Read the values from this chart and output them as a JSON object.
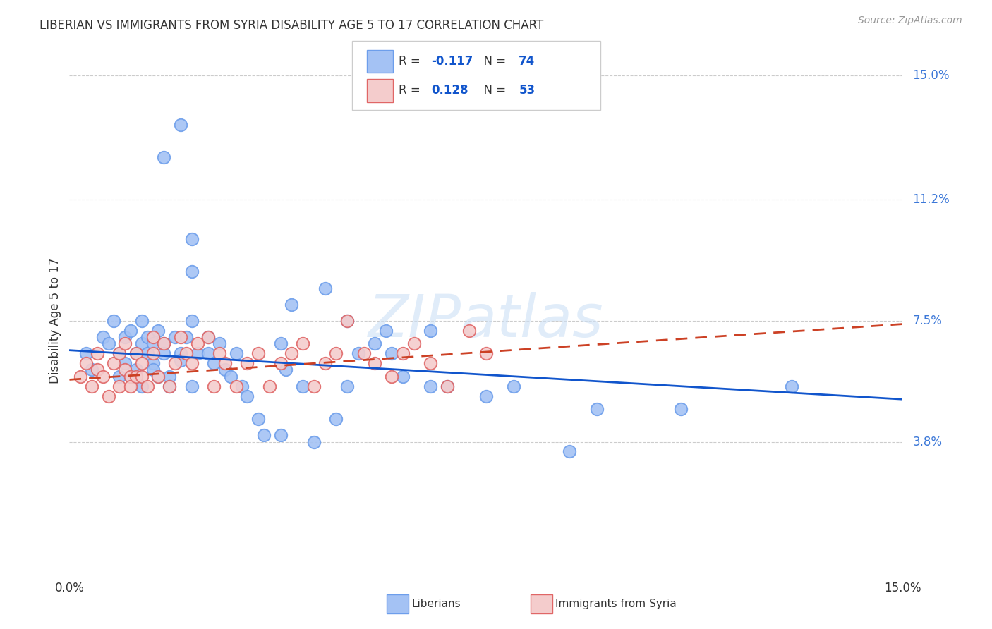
{
  "title": "LIBERIAN VS IMMIGRANTS FROM SYRIA DISABILITY AGE 5 TO 17 CORRELATION CHART",
  "source": "Source: ZipAtlas.com",
  "ylabel": "Disability Age 5 to 17",
  "xmin": 0.0,
  "xmax": 0.15,
  "ymin": 0.0,
  "ymax": 0.15,
  "yticks": [
    0.0,
    0.038,
    0.075,
    0.112,
    0.15
  ],
  "ytick_labels": [
    "",
    "3.8%",
    "7.5%",
    "11.2%",
    "15.0%"
  ],
  "watermark": "ZIPatlas",
  "liberian_color": "#a4c2f4",
  "syria_color": "#f4cccc",
  "liberian_edge_color": "#6d9eeb",
  "syria_edge_color": "#e06666",
  "liberian_line_color": "#1155cc",
  "syria_line_color": "#cc4125",
  "lib_trend_start_y": 0.066,
  "lib_trend_end_y": 0.051,
  "syr_trend_start_y": 0.057,
  "syr_trend_end_y": 0.074,
  "liberian_x": [
    0.003,
    0.004,
    0.006,
    0.007,
    0.008,
    0.009,
    0.009,
    0.01,
    0.01,
    0.011,
    0.011,
    0.012,
    0.012,
    0.013,
    0.013,
    0.013,
    0.014,
    0.014,
    0.015,
    0.015,
    0.015,
    0.016,
    0.016,
    0.017,
    0.017,
    0.018,
    0.018,
    0.019,
    0.02,
    0.02,
    0.021,
    0.022,
    0.022,
    0.023,
    0.025,
    0.025,
    0.026,
    0.027,
    0.028,
    0.029,
    0.03,
    0.031,
    0.032,
    0.034,
    0.035,
    0.038,
    0.039,
    0.042,
    0.044,
    0.048,
    0.05,
    0.055,
    0.058,
    0.065,
    0.068,
    0.075,
    0.08,
    0.09,
    0.095,
    0.11,
    0.13,
    0.017,
    0.02,
    0.022,
    0.022,
    0.038,
    0.04,
    0.046,
    0.05,
    0.052,
    0.057,
    0.06,
    0.065
  ],
  "liberian_y": [
    0.065,
    0.06,
    0.07,
    0.068,
    0.075,
    0.065,
    0.058,
    0.07,
    0.062,
    0.072,
    0.058,
    0.065,
    0.06,
    0.075,
    0.068,
    0.055,
    0.07,
    0.065,
    0.068,
    0.062,
    0.06,
    0.072,
    0.058,
    0.068,
    0.065,
    0.058,
    0.055,
    0.07,
    0.065,
    0.063,
    0.07,
    0.075,
    0.055,
    0.065,
    0.07,
    0.065,
    0.062,
    0.068,
    0.06,
    0.058,
    0.065,
    0.055,
    0.052,
    0.045,
    0.04,
    0.04,
    0.06,
    0.055,
    0.038,
    0.045,
    0.055,
    0.068,
    0.065,
    0.072,
    0.055,
    0.052,
    0.055,
    0.035,
    0.048,
    0.048,
    0.055,
    0.125,
    0.135,
    0.1,
    0.09,
    0.068,
    0.08,
    0.085,
    0.075,
    0.065,
    0.072,
    0.058,
    0.055
  ],
  "syria_x": [
    0.002,
    0.003,
    0.004,
    0.005,
    0.005,
    0.006,
    0.007,
    0.008,
    0.009,
    0.009,
    0.01,
    0.01,
    0.011,
    0.011,
    0.012,
    0.012,
    0.013,
    0.013,
    0.014,
    0.015,
    0.015,
    0.016,
    0.017,
    0.018,
    0.019,
    0.02,
    0.021,
    0.022,
    0.023,
    0.025,
    0.026,
    0.027,
    0.028,
    0.03,
    0.032,
    0.034,
    0.036,
    0.038,
    0.04,
    0.042,
    0.044,
    0.046,
    0.048,
    0.05,
    0.053,
    0.055,
    0.058,
    0.06,
    0.062,
    0.065,
    0.068,
    0.072,
    0.075
  ],
  "syria_y": [
    0.058,
    0.062,
    0.055,
    0.065,
    0.06,
    0.058,
    0.052,
    0.062,
    0.055,
    0.065,
    0.06,
    0.068,
    0.058,
    0.055,
    0.065,
    0.058,
    0.062,
    0.058,
    0.055,
    0.065,
    0.07,
    0.058,
    0.068,
    0.055,
    0.062,
    0.07,
    0.065,
    0.062,
    0.068,
    0.07,
    0.055,
    0.065,
    0.062,
    0.055,
    0.062,
    0.065,
    0.055,
    0.062,
    0.065,
    0.068,
    0.055,
    0.062,
    0.065,
    0.075,
    0.065,
    0.062,
    0.058,
    0.065,
    0.068,
    0.062,
    0.055,
    0.072,
    0.065
  ],
  "background_color": "#ffffff",
  "grid_color": "#cccccc"
}
